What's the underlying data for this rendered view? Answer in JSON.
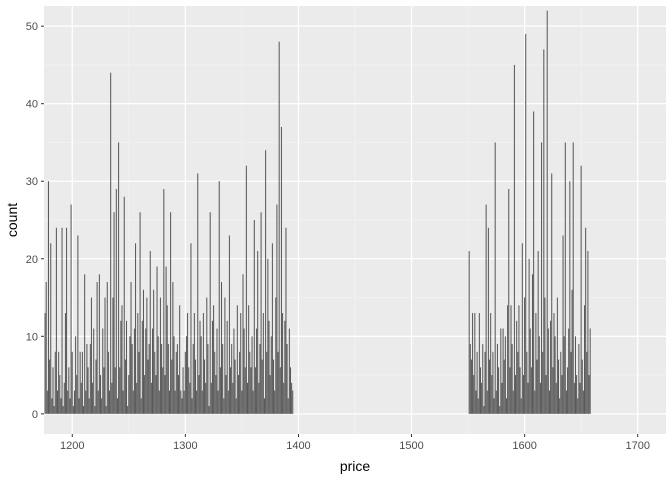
{
  "chart_data": {
    "type": "bar",
    "xlabel": "price",
    "ylabel": "count",
    "xlim": [
      1175,
      1725
    ],
    "ylim": [
      -2.6,
      52.6
    ],
    "x_ticks": [
      1200,
      1300,
      1400,
      1500,
      1600,
      1700
    ],
    "x_tick_labels": [
      "1200",
      "1300",
      "1400",
      "1500",
      "1600",
      "1700"
    ],
    "y_ticks": [
      0,
      10,
      20,
      30,
      40,
      50
    ],
    "y_tick_labels": [
      "0",
      "10",
      "20",
      "30",
      "40",
      "50"
    ],
    "grid": true,
    "legend": "none",
    "bar_width": 1,
    "colors": {
      "panel_background": "#ebebeb",
      "grid_major": "#ffffff",
      "grid_minor": "#f2f2f2",
      "bar_fill": "#595959",
      "tick_color": "#333333"
    },
    "points": [
      [
        1176,
        13
      ],
      [
        1177,
        17
      ],
      [
        1178,
        3
      ],
      [
        1179,
        30
      ],
      [
        1180,
        7
      ],
      [
        1181,
        22
      ],
      [
        1182,
        2
      ],
      [
        1183,
        6
      ],
      [
        1184,
        1
      ],
      [
        1185,
        8
      ],
      [
        1186,
        24
      ],
      [
        1187,
        3
      ],
      [
        1188,
        8
      ],
      [
        1189,
        5
      ],
      [
        1190,
        2
      ],
      [
        1191,
        24
      ],
      [
        1192,
        1
      ],
      [
        1193,
        4
      ],
      [
        1194,
        13
      ],
      [
        1195,
        24
      ],
      [
        1196,
        3
      ],
      [
        1197,
        6
      ],
      [
        1198,
        2
      ],
      [
        1199,
        27
      ],
      [
        1200,
        8
      ],
      [
        1201,
        1
      ],
      [
        1202,
        3
      ],
      [
        1203,
        10
      ],
      [
        1204,
        5
      ],
      [
        1205,
        23
      ],
      [
        1206,
        2
      ],
      [
        1207,
        8
      ],
      [
        1208,
        4
      ],
      [
        1209,
        8
      ],
      [
        1210,
        1
      ],
      [
        1211,
        18
      ],
      [
        1212,
        3
      ],
      [
        1213,
        9
      ],
      [
        1214,
        6
      ],
      [
        1215,
        2
      ],
      [
        1216,
        9
      ],
      [
        1217,
        15
      ],
      [
        1218,
        4
      ],
      [
        1219,
        11
      ],
      [
        1220,
        1
      ],
      [
        1221,
        7
      ],
      [
        1222,
        17
      ],
      [
        1223,
        3
      ],
      [
        1224,
        18
      ],
      [
        1225,
        5
      ],
      [
        1226,
        2
      ],
      [
        1227,
        11
      ],
      [
        1228,
        6
      ],
      [
        1229,
        15
      ],
      [
        1230,
        1
      ],
      [
        1231,
        17
      ],
      [
        1232,
        8
      ],
      [
        1233,
        3
      ],
      [
        1234,
        44
      ],
      [
        1235,
        4
      ],
      [
        1236,
        15
      ],
      [
        1237,
        26
      ],
      [
        1238,
        6
      ],
      [
        1239,
        29
      ],
      [
        1240,
        2
      ],
      [
        1241,
        35
      ],
      [
        1242,
        6
      ],
      [
        1243,
        12
      ],
      [
        1244,
        14
      ],
      [
        1245,
        3
      ],
      [
        1246,
        28
      ],
      [
        1247,
        7
      ],
      [
        1248,
        12
      ],
      [
        1249,
        1
      ],
      [
        1250,
        5
      ],
      [
        1251,
        10
      ],
      [
        1252,
        17
      ],
      [
        1253,
        9
      ],
      [
        1254,
        3
      ],
      [
        1255,
        11
      ],
      [
        1256,
        22
      ],
      [
        1257,
        4
      ],
      [
        1258,
        13
      ],
      [
        1259,
        8
      ],
      [
        1260,
        26
      ],
      [
        1261,
        2
      ],
      [
        1262,
        12
      ],
      [
        1263,
        16
      ],
      [
        1264,
        5
      ],
      [
        1265,
        11
      ],
      [
        1266,
        15
      ],
      [
        1267,
        7
      ],
      [
        1268,
        9
      ],
      [
        1269,
        21
      ],
      [
        1270,
        4
      ],
      [
        1271,
        11
      ],
      [
        1272,
        16
      ],
      [
        1273,
        8
      ],
      [
        1274,
        5
      ],
      [
        1275,
        19
      ],
      [
        1276,
        10
      ],
      [
        1277,
        3
      ],
      [
        1278,
        15
      ],
      [
        1279,
        9
      ],
      [
        1280,
        6
      ],
      [
        1281,
        29
      ],
      [
        1282,
        5
      ],
      [
        1283,
        19
      ],
      [
        1284,
        14
      ],
      [
        1285,
        9
      ],
      [
        1286,
        3
      ],
      [
        1287,
        26
      ],
      [
        1288,
        7
      ],
      [
        1289,
        17
      ],
      [
        1290,
        10
      ],
      [
        1291,
        3
      ],
      [
        1292,
        8
      ],
      [
        1293,
        9
      ],
      [
        1294,
        5
      ],
      [
        1295,
        14
      ],
      [
        1296,
        3
      ],
      [
        1297,
        2
      ],
      [
        1298,
        6
      ],
      [
        1299,
        3
      ],
      [
        1300,
        8
      ],
      [
        1301,
        10
      ],
      [
        1302,
        13
      ],
      [
        1303,
        6
      ],
      [
        1304,
        4
      ],
      [
        1305,
        22
      ],
      [
        1306,
        2
      ],
      [
        1307,
        9
      ],
      [
        1308,
        13
      ],
      [
        1309,
        7
      ],
      [
        1310,
        3
      ],
      [
        1311,
        31
      ],
      [
        1312,
        5
      ],
      [
        1313,
        12
      ],
      [
        1314,
        10
      ],
      [
        1315,
        3
      ],
      [
        1316,
        13
      ],
      [
        1317,
        7
      ],
      [
        1318,
        4
      ],
      [
        1319,
        15
      ],
      [
        1320,
        9
      ],
      [
        1321,
        1
      ],
      [
        1322,
        26
      ],
      [
        1323,
        4
      ],
      [
        1324,
        12
      ],
      [
        1325,
        14
      ],
      [
        1326,
        8
      ],
      [
        1327,
        5
      ],
      [
        1328,
        11
      ],
      [
        1329,
        3
      ],
      [
        1330,
        30
      ],
      [
        1331,
        6
      ],
      [
        1332,
        17
      ],
      [
        1333,
        9
      ],
      [
        1334,
        2
      ],
      [
        1335,
        15
      ],
      [
        1336,
        5
      ],
      [
        1337,
        12
      ],
      [
        1338,
        3
      ],
      [
        1339,
        23
      ],
      [
        1340,
        6
      ],
      [
        1341,
        9
      ],
      [
        1342,
        4
      ],
      [
        1343,
        11
      ],
      [
        1344,
        7
      ],
      [
        1345,
        2
      ],
      [
        1346,
        14
      ],
      [
        1347,
        5
      ],
      [
        1348,
        8
      ],
      [
        1349,
        13
      ],
      [
        1350,
        3
      ],
      [
        1351,
        18
      ],
      [
        1352,
        11
      ],
      [
        1353,
        6
      ],
      [
        1354,
        32
      ],
      [
        1355,
        4
      ],
      [
        1356,
        14
      ],
      [
        1357,
        8
      ],
      [
        1358,
        6
      ],
      [
        1359,
        10
      ],
      [
        1360,
        3
      ],
      [
        1361,
        25
      ],
      [
        1362,
        6
      ],
      [
        1363,
        11
      ],
      [
        1364,
        21
      ],
      [
        1365,
        4
      ],
      [
        1366,
        9
      ],
      [
        1367,
        26
      ],
      [
        1368,
        7
      ],
      [
        1369,
        13
      ],
      [
        1370,
        2
      ],
      [
        1371,
        34
      ],
      [
        1372,
        8
      ],
      [
        1373,
        20
      ],
      [
        1374,
        12
      ],
      [
        1375,
        5
      ],
      [
        1376,
        10
      ],
      [
        1377,
        22
      ],
      [
        1378,
        7
      ],
      [
        1379,
        3
      ],
      [
        1380,
        15
      ],
      [
        1381,
        27
      ],
      [
        1382,
        8
      ],
      [
        1383,
        48
      ],
      [
        1384,
        6
      ],
      [
        1385,
        37
      ],
      [
        1386,
        13
      ],
      [
        1387,
        4
      ],
      [
        1388,
        12
      ],
      [
        1389,
        24
      ],
      [
        1390,
        9
      ],
      [
        1391,
        2
      ],
      [
        1392,
        11
      ],
      [
        1393,
        6
      ],
      [
        1394,
        4
      ],
      [
        1395,
        3
      ],
      [
        1551,
        21
      ],
      [
        1552,
        9
      ],
      [
        1553,
        7
      ],
      [
        1554,
        13
      ],
      [
        1555,
        5
      ],
      [
        1556,
        13
      ],
      [
        1557,
        3
      ],
      [
        1558,
        8
      ],
      [
        1559,
        2
      ],
      [
        1560,
        13
      ],
      [
        1561,
        6
      ],
      [
        1562,
        4
      ],
      [
        1563,
        9
      ],
      [
        1564,
        1
      ],
      [
        1565,
        8
      ],
      [
        1566,
        27
      ],
      [
        1567,
        3
      ],
      [
        1568,
        24
      ],
      [
        1569,
        7
      ],
      [
        1570,
        13
      ],
      [
        1571,
        5
      ],
      [
        1572,
        8
      ],
      [
        1573,
        2
      ],
      [
        1574,
        35
      ],
      [
        1575,
        3
      ],
      [
        1576,
        9
      ],
      [
        1577,
        6
      ],
      [
        1578,
        1
      ],
      [
        1579,
        11
      ],
      [
        1580,
        4
      ],
      [
        1581,
        11
      ],
      [
        1582,
        7
      ],
      [
        1583,
        10
      ],
      [
        1584,
        2
      ],
      [
        1585,
        14
      ],
      [
        1586,
        29
      ],
      [
        1587,
        6
      ],
      [
        1588,
        14
      ],
      [
        1589,
        9
      ],
      [
        1590,
        3
      ],
      [
        1591,
        45
      ],
      [
        1592,
        5
      ],
      [
        1593,
        12
      ],
      [
        1594,
        8
      ],
      [
        1595,
        14
      ],
      [
        1596,
        6
      ],
      [
        1597,
        2
      ],
      [
        1598,
        22
      ],
      [
        1599,
        5
      ],
      [
        1600,
        15
      ],
      [
        1601,
        49
      ],
      [
        1602,
        8
      ],
      [
        1603,
        4
      ],
      [
        1604,
        20
      ],
      [
        1605,
        11
      ],
      [
        1606,
        6
      ],
      [
        1607,
        18
      ],
      [
        1608,
        39
      ],
      [
        1609,
        3
      ],
      [
        1610,
        13
      ],
      [
        1611,
        7
      ],
      [
        1612,
        21
      ],
      [
        1613,
        10
      ],
      [
        1614,
        4
      ],
      [
        1615,
        35
      ],
      [
        1616,
        8
      ],
      [
        1617,
        47
      ],
      [
        1618,
        15
      ],
      [
        1619,
        5
      ],
      [
        1620,
        52
      ],
      [
        1621,
        11
      ],
      [
        1622,
        3
      ],
      [
        1623,
        12
      ],
      [
        1624,
        31
      ],
      [
        1625,
        6
      ],
      [
        1626,
        13
      ],
      [
        1627,
        10
      ],
      [
        1628,
        4
      ],
      [
        1629,
        15
      ],
      [
        1630,
        7
      ],
      [
        1631,
        2
      ],
      [
        1632,
        8
      ],
      [
        1633,
        5
      ],
      [
        1634,
        23
      ],
      [
        1635,
        10
      ],
      [
        1636,
        35
      ],
      [
        1637,
        3
      ],
      [
        1638,
        6
      ],
      [
        1639,
        11
      ],
      [
        1640,
        30
      ],
      [
        1641,
        8
      ],
      [
        1642,
        16
      ],
      [
        1643,
        35
      ],
      [
        1644,
        4
      ],
      [
        1645,
        10
      ],
      [
        1646,
        5
      ],
      [
        1647,
        2
      ],
      [
        1648,
        9
      ],
      [
        1649,
        4
      ],
      [
        1650,
        32
      ],
      [
        1651,
        7
      ],
      [
        1652,
        3
      ],
      [
        1653,
        14
      ],
      [
        1654,
        24
      ],
      [
        1655,
        8
      ],
      [
        1656,
        21
      ],
      [
        1657,
        5
      ],
      [
        1658,
        11
      ]
    ]
  }
}
